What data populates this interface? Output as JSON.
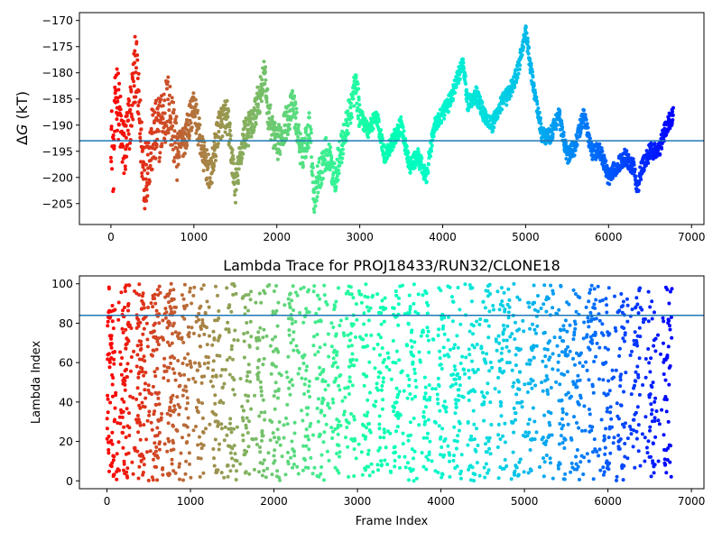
{
  "chart_data": [
    {
      "type": "scatter",
      "title": "",
      "xlabel": "",
      "ylabel_prefix": "Δ",
      "ylabel_italic": "G",
      "ylabel_suffix": " (kT)",
      "xlim": [
        -380,
        7150
      ],
      "ylim": [
        -209,
        -168.5
      ],
      "xticks": [
        0,
        1000,
        2000,
        3000,
        4000,
        5000,
        6000,
        7000
      ],
      "xtick_labels": [
        "0",
        "1000",
        "2000",
        "3000",
        "4000",
        "5000",
        "6000",
        "7000"
      ],
      "yticks": [
        -205,
        -200,
        -195,
        -190,
        -185,
        -180,
        -175,
        -170
      ],
      "ytick_labels": [
        "−205",
        "−200",
        "−195",
        "−190",
        "−185",
        "−180",
        "−175",
        "−170"
      ],
      "hline": {
        "y": -193,
        "color": "#1f77b4"
      },
      "colormap": "rainbow (red at first frame to violet at last frame)",
      "marker_size": 2,
      "x_range": [
        0,
        6780
      ],
      "trace_anchors": {
        "x": [
          0,
          30,
          60,
          100,
          150,
          200,
          250,
          300,
          350,
          400,
          500,
          600,
          700,
          800,
          900,
          1000,
          1100,
          1200,
          1300,
          1400,
          1500,
          1600,
          1700,
          1800,
          1850,
          1900,
          2000,
          2100,
          2200,
          2300,
          2400,
          2450,
          2500,
          2600,
          2700,
          2800,
          2900,
          2950,
          3000,
          3100,
          3200,
          3300,
          3400,
          3500,
          3600,
          3700,
          3800,
          3900,
          4000,
          4100,
          4200,
          4250,
          4300,
          4400,
          4500,
          4600,
          4700,
          4800,
          4900,
          5000,
          5050,
          5100,
          5200,
          5300,
          5400,
          5500,
          5600,
          5700,
          5800,
          5900,
          6000,
          6100,
          6200,
          6300,
          6350,
          6400,
          6500,
          6600,
          6700,
          6780
        ],
        "y": [
          -190,
          -198,
          -182,
          -188,
          -195,
          -192,
          -186,
          -178,
          -190,
          -200,
          -193,
          -190,
          -186,
          -195,
          -192,
          -186,
          -195,
          -200,
          -190,
          -188,
          -202,
          -192,
          -190,
          -184,
          -180,
          -188,
          -194,
          -190,
          -186,
          -196,
          -190,
          -204,
          -200,
          -195,
          -200,
          -193,
          -186,
          -182,
          -188,
          -191,
          -188,
          -196,
          -193,
          -190,
          -198,
          -196,
          -200,
          -190,
          -188,
          -185,
          -180,
          -178,
          -186,
          -184,
          -188,
          -190,
          -186,
          -184,
          -180,
          -172,
          -178,
          -183,
          -192,
          -192,
          -188,
          -196,
          -194,
          -188,
          -195,
          -195,
          -200,
          -198,
          -196,
          -198,
          -202,
          -198,
          -195,
          -195,
          -190,
          -188
        ]
      }
    },
    {
      "type": "scatter",
      "title": "Lambda Trace for PROJ18433/RUN32/CLONE18",
      "xlabel": "Frame Index",
      "ylabel": "Lambda Index",
      "xlim": [
        -330,
        7150
      ],
      "ylim": [
        -4,
        104
      ],
      "xticks": [
        0,
        1000,
        2000,
        3000,
        4000,
        5000,
        6000,
        7000
      ],
      "xtick_labels": [
        "0",
        "1000",
        "2000",
        "3000",
        "4000",
        "5000",
        "6000",
        "7000"
      ],
      "yticks": [
        0,
        20,
        40,
        60,
        80,
        100
      ],
      "ytick_labels": [
        "0",
        "20",
        "40",
        "60",
        "80",
        "100"
      ],
      "hline": {
        "y": 84,
        "color": "#1f77b4"
      },
      "colormap": "rainbow (red at first frame to violet at last frame)",
      "marker_size": 2,
      "x_range": [
        0,
        6780
      ],
      "y_range": [
        0,
        100
      ]
    }
  ]
}
